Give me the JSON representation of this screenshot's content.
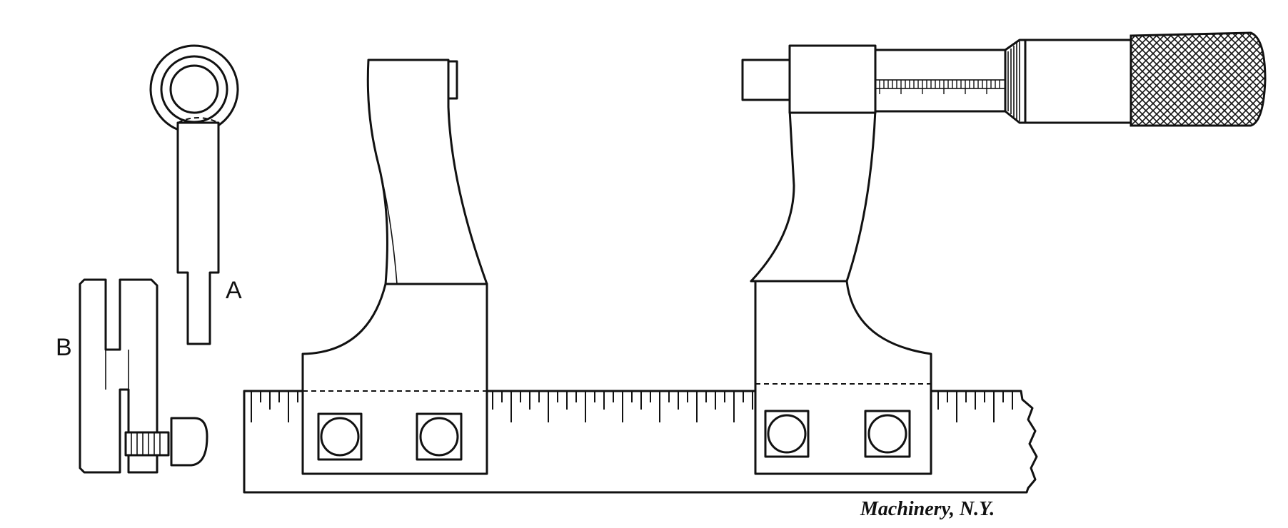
{
  "labels": {
    "part_a": "A",
    "part_b": "B"
  },
  "credit": "Machinery, N.Y.",
  "colors": {
    "ink": "#111111",
    "paper": "#ffffff"
  }
}
